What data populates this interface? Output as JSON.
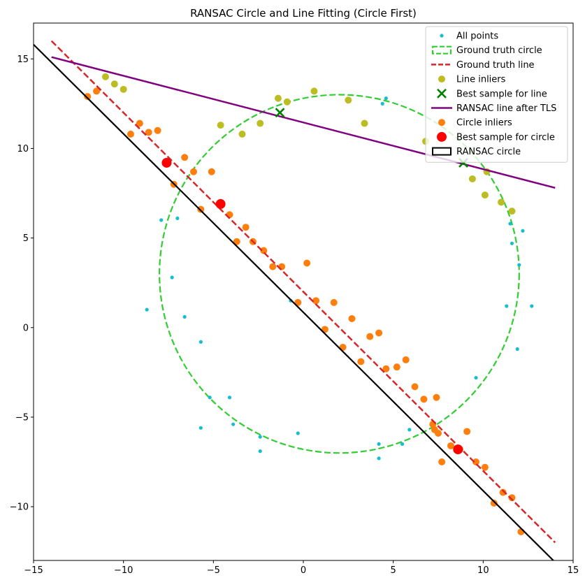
{
  "chart_data": {
    "type": "scatter",
    "title": "RANSAC Circle and Line Fitting (Circle First)",
    "xlabel": "",
    "ylabel": "",
    "xlim": [
      -15,
      15
    ],
    "ylim": [
      -13,
      17
    ],
    "xticks": [
      -15,
      -10,
      -5,
      0,
      5,
      10,
      15
    ],
    "yticks": [
      -10,
      -5,
      0,
      5,
      10,
      15
    ],
    "grid": false,
    "legend_position": "top-right",
    "legend": [
      {
        "label": "All points",
        "kind": "dot",
        "color": "#17becf"
      },
      {
        "label": "Ground truth circle",
        "kind": "dashed-patch",
        "color": "#32cd32"
      },
      {
        "label": "Ground truth line",
        "kind": "dashed-line",
        "color": "#d62728"
      },
      {
        "label": "Line inliers",
        "kind": "dot-large",
        "color": "#bcbd22"
      },
      {
        "label": "Best sample for line",
        "kind": "x",
        "color": "#008000"
      },
      {
        "label": "RANSAC line after TLS",
        "kind": "line",
        "color": "#800080"
      },
      {
        "label": "Circle inliers",
        "kind": "dot-large",
        "color": "#ff7f0e"
      },
      {
        "label": "Best sample for circle",
        "kind": "dot-xl",
        "color": "#ff0000"
      },
      {
        "label": "RANSAC circle",
        "kind": "patch",
        "color": "#000000"
      }
    ],
    "ground_truth_circle": {
      "center": [
        2,
        3
      ],
      "radius": 10,
      "color": "#32cd32"
    },
    "ground_truth_line": {
      "x": [
        -14,
        14
      ],
      "y": [
        16.0,
        -12.0
      ],
      "color": "#d62728"
    },
    "ransac_line": {
      "x": [
        -14,
        14
      ],
      "y": [
        15.1,
        7.8
      ],
      "color": "#800080"
    },
    "ransac_circle_fit": {
      "x": [
        -15,
        13.9
      ],
      "y": [
        15.8,
        -13.0
      ],
      "color": "#000000"
    },
    "all_points": {
      "color": "#17becf",
      "x": [
        -7.9,
        -7.3,
        -7.0,
        -6.6,
        -5.7,
        -5.2,
        -4.1,
        -3.9,
        -2.4,
        -2.4,
        -5.7,
        -8.7,
        -0.7,
        -0.3,
        4.2,
        4.2,
        4.4,
        4.6,
        5.5,
        5.9,
        9.6,
        11.6,
        12.0,
        12.2,
        11.9,
        12.7,
        11.3,
        11.5
      ],
      "y": [
        6.0,
        2.8,
        6.1,
        0.6,
        -0.8,
        -3.9,
        -3.9,
        -5.4,
        -6.1,
        -6.9,
        -5.6,
        1.0,
        1.5,
        -5.9,
        -6.5,
        -7.3,
        12.5,
        12.8,
        -6.5,
        -5.7,
        -2.8,
        4.7,
        3.5,
        5.4,
        -1.2,
        1.2,
        1.2,
        5.8
      ]
    },
    "line_inliers": {
      "color": "#bcbd22",
      "x": [
        -11.0,
        -10.5,
        -10.0,
        -4.6,
        -3.4,
        -2.4,
        -1.4,
        -0.9,
        0.6,
        2.5,
        3.4,
        6.8,
        9.4,
        10.1,
        11.0,
        11.6,
        10.2
      ],
      "y": [
        14.0,
        13.6,
        13.3,
        11.3,
        10.8,
        11.4,
        12.8,
        12.6,
        13.2,
        12.7,
        11.4,
        10.4,
        8.3,
        7.4,
        7.0,
        6.5,
        8.7
      ]
    },
    "best_sample_line": {
      "color": "#008000",
      "x": [
        -1.3,
        8.9
      ],
      "y": [
        12.0,
        9.2
      ]
    },
    "circle_inliers": {
      "color": "#ff7f0e",
      "x": [
        -12.0,
        -11.5,
        -9.6,
        -9.1,
        -8.6,
        -8.1,
        -7.2,
        -6.6,
        -6.1,
        -5.7,
        -5.1,
        -4.1,
        -3.7,
        -3.2,
        -2.8,
        -2.2,
        -1.7,
        -1.2,
        -0.3,
        0.2,
        0.7,
        1.2,
        1.7,
        2.2,
        2.7,
        3.2,
        3.7,
        4.2,
        4.6,
        5.2,
        5.7,
        6.2,
        6.7,
        7.2,
        7.3,
        7.4,
        7.5,
        7.7,
        8.2,
        8.7,
        9.1,
        9.6,
        10.1,
        10.6,
        11.1,
        11.6,
        12.1
      ],
      "y": [
        12.9,
        13.2,
        10.8,
        11.4,
        10.9,
        11.0,
        8.0,
        9.5,
        8.7,
        6.6,
        8.7,
        6.3,
        4.8,
        5.6,
        4.8,
        4.3,
        3.4,
        3.4,
        1.4,
        3.6,
        1.5,
        -0.1,
        1.4,
        -1.1,
        0.5,
        -1.9,
        -0.5,
        -0.3,
        -2.3,
        -2.2,
        -1.8,
        -3.3,
        -4.0,
        -5.4,
        -5.7,
        -3.9,
        -5.9,
        -7.5,
        -6.6,
        -6.8,
        -5.8,
        -7.5,
        -7.8,
        -9.8,
        -9.2,
        -9.5,
        -11.4
      ]
    },
    "best_sample_circle": {
      "color": "#ff0000",
      "x": [
        -7.6,
        -4.6,
        8.6
      ],
      "y": [
        9.2,
        6.9,
        -6.8
      ]
    }
  }
}
